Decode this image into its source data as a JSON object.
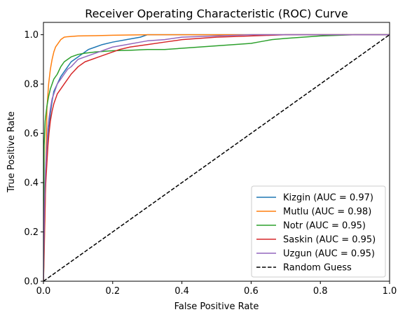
{
  "chart_data": {
    "type": "line",
    "title": "Receiver Operating Characteristic (ROC) Curve",
    "xlabel": "False Positive Rate",
    "ylabel": "True Positive Rate",
    "xlim": [
      0.0,
      1.0
    ],
    "ylim": [
      0.0,
      1.05
    ],
    "xticks": [
      "0.0",
      "0.2",
      "0.4",
      "0.6",
      "0.8",
      "1.0"
    ],
    "yticks": [
      "0.0",
      "0.2",
      "0.4",
      "0.6",
      "0.8",
      "1.0"
    ],
    "grid": false,
    "legend_position": "lower-right",
    "series": [
      {
        "name": "Kizgin (AUC = 0.97)",
        "color": "#1f77b4",
        "style": "solid",
        "x": [
          0,
          0.003,
          0.006,
          0.01,
          0.013,
          0.016,
          0.02,
          0.025,
          0.03,
          0.04,
          0.05,
          0.06,
          0.07,
          0.08,
          0.09,
          0.1,
          0.11,
          0.12,
          0.13,
          0.15,
          0.17,
          0.2,
          0.24,
          0.28,
          0.3,
          0.35,
          0.4,
          0.5,
          0.6,
          0.7,
          0.8,
          0.9,
          1.0
        ],
        "y": [
          0,
          0.25,
          0.4,
          0.5,
          0.58,
          0.62,
          0.68,
          0.73,
          0.77,
          0.8,
          0.83,
          0.85,
          0.87,
          0.89,
          0.9,
          0.91,
          0.92,
          0.93,
          0.94,
          0.95,
          0.96,
          0.97,
          0.98,
          0.99,
          1.0,
          1.0,
          1.0,
          1.0,
          1.0,
          1.0,
          1.0,
          1.0,
          1.0
        ]
      },
      {
        "name": "Mutlu (AUC = 0.98)",
        "color": "#ff7f0e",
        "style": "solid",
        "x": [
          0,
          0.002,
          0.005,
          0.008,
          0.01,
          0.015,
          0.02,
          0.025,
          0.03,
          0.035,
          0.04,
          0.045,
          0.05,
          0.055,
          0.06,
          0.07,
          0.08,
          0.1,
          0.15,
          0.2,
          0.25,
          0.3,
          0.35,
          0.4,
          0.5,
          0.6,
          0.7,
          0.8,
          0.9,
          1.0
        ],
        "y": [
          0,
          0.1,
          0.3,
          0.55,
          0.7,
          0.8,
          0.86,
          0.9,
          0.93,
          0.95,
          0.96,
          0.97,
          0.98,
          0.985,
          0.99,
          0.992,
          0.993,
          0.995,
          0.996,
          0.998,
          0.999,
          1.0,
          1.0,
          1.0,
          1.0,
          1.0,
          1.0,
          1.0,
          1.0,
          1.0
        ]
      },
      {
        "name": "Notr (AUC = 0.95)",
        "color": "#2ca02c",
        "style": "solid",
        "x": [
          0,
          0.002,
          0.005,
          0.01,
          0.015,
          0.02,
          0.025,
          0.03,
          0.04,
          0.05,
          0.06,
          0.07,
          0.08,
          0.09,
          0.1,
          0.12,
          0.15,
          0.2,
          0.25,
          0.3,
          0.35,
          0.4,
          0.45,
          0.5,
          0.55,
          0.6,
          0.62,
          0.64,
          0.66,
          0.7,
          0.75,
          0.8,
          0.9,
          1.0
        ],
        "y": [
          0,
          0.55,
          0.65,
          0.71,
          0.75,
          0.78,
          0.8,
          0.82,
          0.84,
          0.87,
          0.89,
          0.9,
          0.91,
          0.915,
          0.92,
          0.925,
          0.93,
          0.935,
          0.937,
          0.94,
          0.94,
          0.945,
          0.95,
          0.955,
          0.96,
          0.965,
          0.97,
          0.975,
          0.98,
          0.985,
          0.99,
          0.995,
          1.0,
          1.0
        ]
      },
      {
        "name": "Saskin (AUC = 0.95)",
        "color": "#d62728",
        "style": "solid",
        "x": [
          0,
          0.003,
          0.006,
          0.01,
          0.013,
          0.016,
          0.02,
          0.025,
          0.03,
          0.035,
          0.04,
          0.05,
          0.06,
          0.07,
          0.08,
          0.09,
          0.1,
          0.11,
          0.12,
          0.13,
          0.14,
          0.16,
          0.18,
          0.2,
          0.22,
          0.25,
          0.3,
          0.35,
          0.4,
          0.5,
          0.6,
          0.7,
          0.8,
          0.9,
          1.0
        ],
        "y": [
          0,
          0.2,
          0.38,
          0.48,
          0.55,
          0.6,
          0.65,
          0.69,
          0.72,
          0.74,
          0.76,
          0.78,
          0.8,
          0.82,
          0.84,
          0.855,
          0.87,
          0.88,
          0.89,
          0.895,
          0.9,
          0.91,
          0.92,
          0.93,
          0.94,
          0.95,
          0.96,
          0.97,
          0.98,
          0.99,
          0.995,
          1.0,
          1.0,
          1.0,
          1.0
        ]
      },
      {
        "name": "Uzgun (AUC = 0.95)",
        "color": "#9467bd",
        "style": "solid",
        "x": [
          0,
          0.003,
          0.006,
          0.01,
          0.013,
          0.016,
          0.02,
          0.025,
          0.03,
          0.035,
          0.04,
          0.05,
          0.06,
          0.07,
          0.08,
          0.09,
          0.1,
          0.12,
          0.14,
          0.16,
          0.18,
          0.2,
          0.24,
          0.28,
          0.3,
          0.35,
          0.4,
          0.5,
          0.6,
          0.7,
          0.8,
          0.9,
          1.0
        ],
        "y": [
          0,
          0.3,
          0.45,
          0.55,
          0.62,
          0.66,
          0.7,
          0.74,
          0.76,
          0.78,
          0.8,
          0.82,
          0.84,
          0.86,
          0.87,
          0.885,
          0.9,
          0.91,
          0.92,
          0.93,
          0.94,
          0.95,
          0.96,
          0.97,
          0.975,
          0.98,
          0.99,
          0.995,
          1.0,
          1.0,
          1.0,
          1.0,
          1.0
        ]
      },
      {
        "name": "Random Guess",
        "color": "#000000",
        "style": "dashed",
        "x": [
          0,
          1
        ],
        "y": [
          0,
          1
        ]
      }
    ]
  }
}
